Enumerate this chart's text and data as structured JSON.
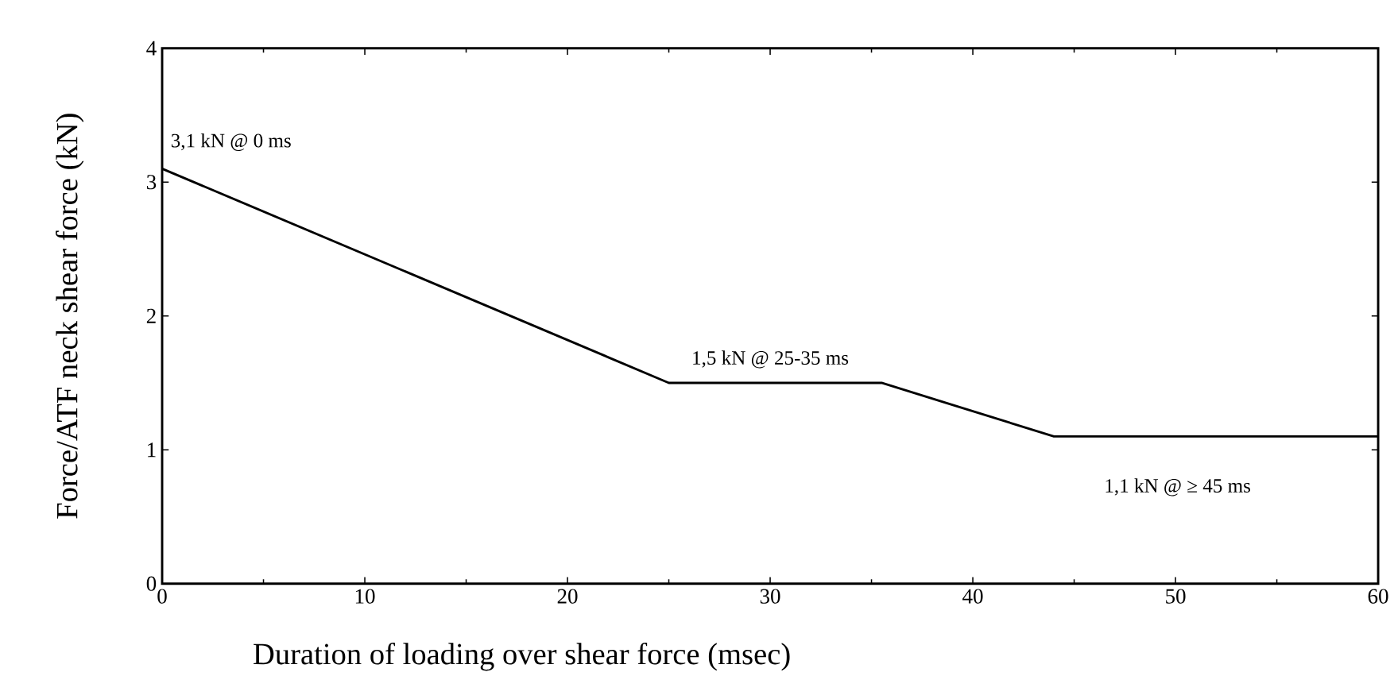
{
  "chart_data": {
    "type": "line",
    "xlabel": "Duration of loading over shear force (msec)",
    "ylabel": "Force/ATF neck shear force (kN)",
    "x": [
      0,
      25,
      35.5,
      44,
      60
    ],
    "values": [
      3.1,
      1.5,
      1.5,
      1.1,
      1.1
    ],
    "color": "#000000",
    "xlim": [
      0,
      60
    ],
    "ylim": [
      0,
      4
    ],
    "xticks": [
      0,
      10,
      20,
      30,
      40,
      50,
      60
    ],
    "yticks": [
      0,
      1,
      2,
      3,
      4
    ],
    "grid": false,
    "marker": "none",
    "line_style": "solid",
    "annotations": [
      {
        "text": "3,1 kN @ 0 ms",
        "x": 0,
        "y": 3.1
      },
      {
        "text": "1,5 kN @ 25-35 ms",
        "x": 30,
        "y": 1.5
      },
      "1,1 kN @ ≥ 45 ms"
    ]
  }
}
